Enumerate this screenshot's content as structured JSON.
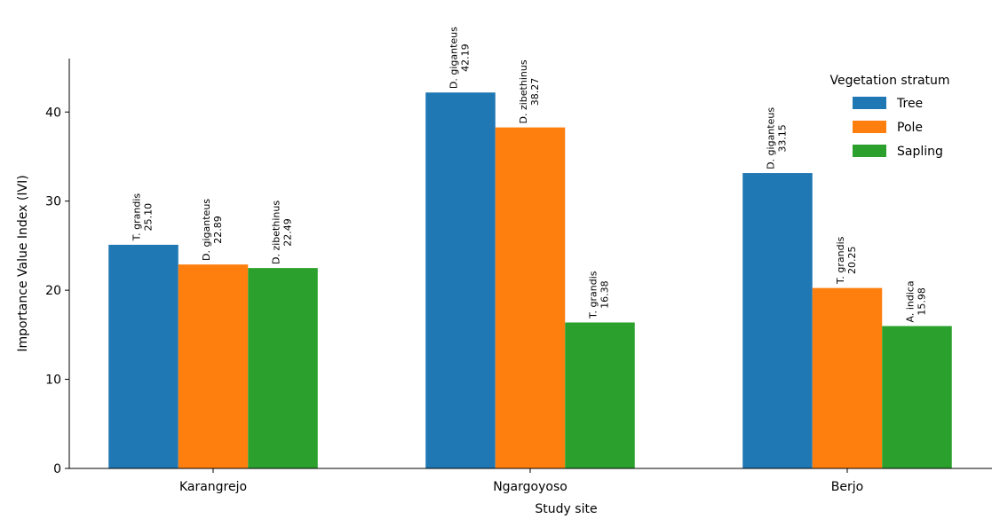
{
  "chart_data": {
    "type": "bar",
    "xlabel": "Study site",
    "ylabel": "Importance Value Index (IVI)",
    "categories": [
      "Karangrejo",
      "Ngargoyoso",
      "Berjo"
    ],
    "ylim": [
      0,
      46
    ],
    "yticks": [
      0,
      10,
      20,
      30,
      40
    ],
    "grid": false,
    "legend": {
      "title": "Vegetation stratum",
      "placement": "top-right"
    },
    "series": [
      {
        "name": "Tree",
        "color": "#1f77b4",
        "values": [
          25.1,
          42.19,
          33.15
        ],
        "species": [
          "T. grandis",
          "D. giganteus",
          "D. giganteus"
        ]
      },
      {
        "name": "Pole",
        "color": "#ff7f0e",
        "values": [
          22.89,
          38.27,
          20.25
        ],
        "species": [
          "D. giganteus",
          "D. zibethinus",
          "T. grandis"
        ]
      },
      {
        "name": "Sapling",
        "color": "#2ca02c",
        "values": [
          22.49,
          16.38,
          15.98
        ],
        "species": [
          "D. zibethinus",
          "T. grandis",
          "A. indica"
        ]
      }
    ]
  }
}
